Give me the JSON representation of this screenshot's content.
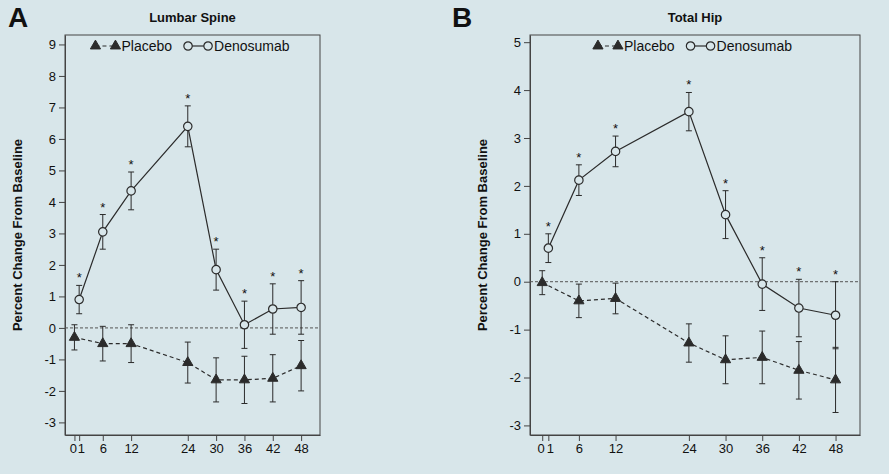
{
  "chart_data": [
    {
      "type": "line",
      "panel_label": "A",
      "title": "Lumbar Spine",
      "ylabel": "Percent Change From Baseline",
      "xlim": [
        -2,
        52
      ],
      "ylim": [
        -3.4,
        9.3
      ],
      "xticks": [
        0,
        1,
        6,
        12,
        24,
        30,
        36,
        42,
        48
      ],
      "yticks": [
        -3,
        -2,
        -1,
        0,
        1,
        2,
        3,
        4,
        5,
        6,
        7,
        8,
        9
      ],
      "hline": 0,
      "legend": "top",
      "series": [
        {
          "name": "Placebo",
          "color": "#2b2b2b",
          "marker": "triangle",
          "line_style": "dashed",
          "x": [
            0,
            6,
            12,
            24,
            30,
            36,
            42,
            48
          ],
          "values": [
            -0.3,
            -0.5,
            -0.5,
            -1.1,
            -1.65,
            -1.65,
            -1.6,
            -1.2
          ],
          "errors": [
            0.4,
            0.55,
            0.6,
            0.65,
            0.7,
            0.75,
            0.75,
            0.8
          ]
        },
        {
          "name": "Denosumab",
          "color": "#2b2b2b",
          "marker": "circle-open",
          "line_style": "solid",
          "x": [
            1,
            6,
            12,
            24,
            30,
            36,
            42,
            48
          ],
          "values": [
            0.9,
            3.05,
            4.35,
            6.4,
            1.85,
            0.1,
            0.6,
            0.65
          ],
          "errors": [
            0.45,
            0.55,
            0.6,
            0.65,
            0.65,
            0.75,
            0.8,
            0.85
          ],
          "annotations": [
            "*",
            "*",
            "*",
            "*",
            "*",
            "*",
            "*",
            "*"
          ]
        }
      ]
    },
    {
      "type": "line",
      "panel_label": "B",
      "title": "Total Hip",
      "ylabel": "Percent Change From Baseline",
      "xlim": [
        -2,
        52
      ],
      "ylim": [
        -3.2,
        5.15
      ],
      "xticks": [
        0,
        1,
        6,
        12,
        24,
        30,
        36,
        42,
        48
      ],
      "yticks": [
        -3,
        -2,
        -1,
        0,
        1,
        2,
        3,
        4,
        5
      ],
      "hline": 0,
      "legend": "top",
      "series": [
        {
          "name": "Placebo",
          "color": "#2b2b2b",
          "marker": "triangle",
          "line_style": "dashed",
          "x": [
            0,
            6,
            12,
            24,
            30,
            36,
            42,
            48
          ],
          "values": [
            -0.02,
            -0.4,
            -0.35,
            -1.28,
            -1.63,
            -1.58,
            -1.85,
            -2.05
          ],
          "errors": [
            0.25,
            0.35,
            0.32,
            0.4,
            0.5,
            0.55,
            0.6,
            0.68
          ]
        },
        {
          "name": "Denosumab",
          "color": "#2b2b2b",
          "marker": "circle-open",
          "line_style": "solid",
          "x": [
            1,
            6,
            12,
            24,
            30,
            36,
            42,
            48
          ],
          "values": [
            0.7,
            2.12,
            2.72,
            3.55,
            1.4,
            -0.05,
            -0.55,
            -0.7
          ],
          "errors": [
            0.3,
            0.32,
            0.32,
            0.4,
            0.5,
            0.55,
            0.6,
            0.7
          ],
          "annotations": [
            "*",
            "*",
            "*",
            "*",
            "*",
            "*",
            "*",
            "*"
          ]
        }
      ]
    }
  ]
}
